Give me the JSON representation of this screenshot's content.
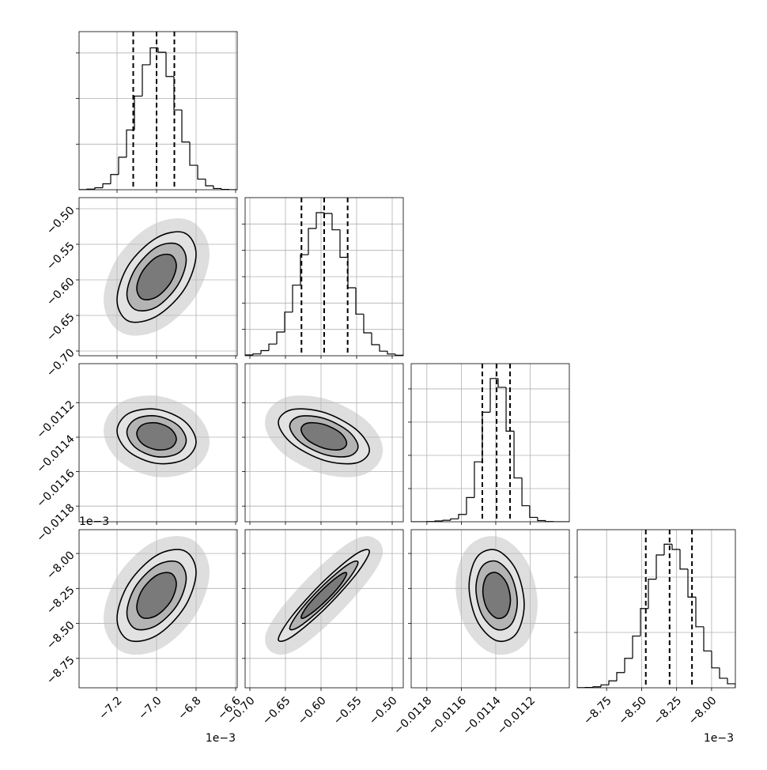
{
  "chart_data": {
    "type": "corner",
    "grid": true,
    "color": "#000000",
    "grid_color": "#b0b0b0",
    "point_color": "#bdbdbd",
    "contour_fills": [
      "#e2e2e2",
      "#b4b4b4",
      "#7a7a7a"
    ],
    "params": [
      {
        "lim": [
          -7.392,
          -6.592
        ],
        "ticks": [
          {
            "value": -7.2,
            "label": "−7.2"
          },
          {
            "value": -7.0,
            "label": "−7.0"
          },
          {
            "value": -6.8,
            "label": "−6.8"
          },
          {
            "value": -6.6,
            "label": "−6.6"
          }
        ],
        "offset_text": "1e−3",
        "bins": [
          -7.392,
          -7.352,
          -7.312,
          -7.272,
          -7.232,
          -7.192,
          -7.152,
          -7.112,
          -7.072,
          -7.032,
          -6.992,
          -6.952,
          -6.912,
          -6.872,
          -6.832,
          -6.792,
          -6.752,
          -6.712,
          -6.672,
          -6.632,
          -6.592
        ],
        "counts": [
          1,
          4,
          13,
          39,
          100,
          214,
          393,
          616,
          822,
          933,
          904,
          745,
          525,
          314,
          161,
          70,
          26,
          8,
          2,
          0
        ],
        "count_lim": [
          0,
          1040
        ],
        "count_ticks": [
          300,
          600,
          900
        ],
        "quantiles": [
          -7.118,
          -7.0,
          -6.91
        ]
      },
      {
        "lim": [
          -0.70667,
          -0.48444
        ],
        "ticks": [
          {
            "value": -0.7,
            "label": "−0.70"
          },
          {
            "value": -0.65,
            "label": "−0.65"
          },
          {
            "value": -0.6,
            "label": "−0.60"
          },
          {
            "value": -0.55,
            "label": "−0.55"
          },
          {
            "value": -0.5,
            "label": "−0.50"
          }
        ],
        "bins": [
          -0.70667,
          -0.69556,
          -0.68444,
          -0.67333,
          -0.66222,
          -0.65111,
          -0.64,
          -0.62889,
          -0.61778,
          -0.60667,
          -0.59556,
          -0.58444,
          -0.57333,
          -0.56222,
          -0.55111,
          -0.54,
          -0.52889,
          -0.51778,
          -0.50667,
          -0.49556,
          -0.48444
        ],
        "counts": [
          6,
          14,
          39,
          89,
          180,
          331,
          536,
          767,
          966,
          1086,
          1080,
          956,
          747,
          516,
          316,
          174,
          84,
          35,
          13,
          4
        ],
        "count_lim": [
          0,
          1200
        ],
        "count_ticks": [
          200,
          400,
          600,
          800,
          1000
        ],
        "quantiles": [
          -0.6275,
          -0.5956,
          -0.5626
        ]
      },
      {
        "lim": [
          -0.011891,
          -0.010973
        ],
        "ticks": [
          {
            "value": -0.0118,
            "label": "−0.0118"
          },
          {
            "value": -0.0116,
            "label": "−0.0116"
          },
          {
            "value": -0.0114,
            "label": "−0.0114"
          },
          {
            "value": -0.0112,
            "label": "−0.0112"
          }
        ],
        "bins": [
          -0.011891,
          -0.011845,
          -0.011799,
          -0.011753,
          -0.011707,
          -0.011662,
          -0.011616,
          -0.01157,
          -0.011524,
          -0.011478,
          -0.011432,
          -0.011386,
          -0.01134,
          -0.011294,
          -0.011248,
          -0.011203,
          -0.011157,
          -0.011111,
          -0.011065,
          -0.011019,
          -0.010973
        ],
        "counts": [
          0,
          0,
          2,
          6,
          11,
          22,
          55,
          182,
          451,
          825,
          1078,
          1012,
          682,
          330,
          121,
          33,
          9,
          2,
          0,
          0
        ],
        "count_lim": [
          0,
          1190
        ],
        "count_ticks": [
          250,
          500,
          750,
          1000
        ],
        "quantiles": [
          -0.011478,
          -0.011395,
          -0.011317
        ]
      },
      {
        "lim": [
          -8.96,
          -7.83
        ],
        "ticks": [
          {
            "value": -8.75,
            "label": "−8.75"
          },
          {
            "value": -8.5,
            "label": "−8.50"
          },
          {
            "value": -8.25,
            "label": "−8.25"
          },
          {
            "value": -8.0,
            "label": "−8.00"
          }
        ],
        "offset_text": "1e−3",
        "bins": [
          -8.96,
          -8.9035,
          -8.847,
          -8.7905,
          -8.734,
          -8.6775,
          -8.621,
          -8.5645,
          -8.508,
          -8.4515,
          -8.395,
          -8.3385,
          -8.282,
          -8.2255,
          -8.169,
          -8.1125,
          -8.056,
          -7.9995,
          -7.943,
          -7.8865,
          -7.83
        ],
        "counts": [
          1,
          2,
          7,
          21,
          50,
          110,
          213,
          374,
          573,
          785,
          960,
          1038,
          1000,
          858,
          656,
          441,
          266,
          144,
          69,
          29
        ],
        "count_lim": [
          0,
          1143
        ],
        "count_ticks": [
          400,
          800
        ],
        "quantiles": [
          -8.47,
          -8.3,
          -8.14
        ]
      }
    ],
    "panels": [
      [
        {
          "contours": [
            {
              "x": [
                -6.8,
                -6.859,
                -7.0,
                -7.141,
                -7.2,
                -7.141,
                -7.0,
                -6.859
              ],
              "y": [
                -0.564,
                -0.534,
                -0.541,
                -0.579,
                -0.628,
                -0.658,
                -0.651,
                -0.613
              ]
            },
            {
              "x": [
                -6.85,
                -6.894,
                -7.0,
                -7.106,
                -7.15,
                -7.106,
                -7.0,
                -6.894
              ],
              "y": [
                -0.572,
                -0.55,
                -0.554,
                -0.584,
                -0.62,
                -0.642,
                -0.638,
                -0.608
              ]
            },
            {
              "x": [
                -6.9,
                -6.929,
                -7.0,
                -7.071,
                -7.1,
                -7.071,
                -7.0,
                -6.929
              ],
              "y": [
                -0.58,
                -0.565,
                -0.568,
                -0.588,
                -0.612,
                -0.627,
                -0.624,
                -0.604
              ]
            }
          ]
        }
      ],
      [
        {
          "contours": [
            {
              "x": [
                -6.8,
                -6.859,
                -7.0,
                -7.141,
                -7.2,
                -7.141,
                -7.0,
                -6.859
              ],
              "y": [
                -0.011427,
                -0.011307,
                -0.011238,
                -0.011262,
                -0.011363,
                -0.011483,
                -0.011552,
                -0.011528
              ]
            },
            {
              "x": [
                -6.85,
                -6.894,
                -7.0,
                -7.106,
                -7.15,
                -7.106,
                -7.0,
                -6.894
              ],
              "y": [
                -0.011419,
                -0.011329,
                -0.011277,
                -0.011295,
                -0.011371,
                -0.011461,
                -0.011513,
                -0.011495
              ]
            },
            {
              "x": [
                -6.9,
                -6.929,
                -7.0,
                -7.071,
                -7.1,
                -7.071,
                -7.0,
                -6.929
              ],
              "y": [
                -0.011411,
                -0.011351,
                -0.011317,
                -0.011328,
                -0.011379,
                -0.011439,
                -0.011473,
                -0.011462
              ]
            }
          ]
        },
        {
          "contours": [
            {
              "x": [
                -0.532,
                -0.551,
                -0.596,
                -0.641,
                -0.66,
                -0.641,
                -0.596,
                -0.551
              ],
              "y": [
                -0.011475,
                -0.011354,
                -0.011256,
                -0.01124,
                -0.011315,
                -0.011436,
                -0.011534,
                -0.01155
              ]
            },
            {
              "x": [
                -0.548,
                -0.562,
                -0.596,
                -0.63,
                -0.644,
                -0.63,
                -0.596,
                -0.562
              ],
              "y": [
                -0.011455,
                -0.011364,
                -0.011291,
                -0.011279,
                -0.011335,
                -0.011426,
                -0.011499,
                -0.011511
              ]
            },
            {
              "x": [
                -0.564,
                -0.573,
                -0.596,
                -0.619,
                -0.628,
                -0.619,
                -0.596,
                -0.573
              ],
              "y": [
                -0.011435,
                -0.011374,
                -0.011326,
                -0.011318,
                -0.011355,
                -0.011416,
                -0.011464,
                -0.011472
              ]
            }
          ]
        }
      ],
      [
        {
          "contours": [
            {
              "x": [
                -6.8,
                -6.859,
                -7.0,
                -7.141,
                -7.2,
                -7.141,
                -7.0,
                -6.859
              ],
              "y": [
                -8.135,
                -7.981,
                -8.014,
                -8.215,
                -8.465,
                -8.619,
                -8.586,
                -8.385
              ]
            },
            {
              "x": [
                -6.85,
                -6.894,
                -7.0,
                -7.106,
                -7.15,
                -7.106,
                -7.0,
                -6.894
              ],
              "y": [
                -8.176,
                -8.061,
                -8.086,
                -8.236,
                -8.424,
                -8.539,
                -8.514,
                -8.364
              ]
            },
            {
              "x": [
                -6.9,
                -6.929,
                -7.0,
                -7.071,
                -7.1,
                -7.071,
                -7.0,
                -6.929
              ],
              "y": [
                -8.218,
                -8.141,
                -8.157,
                -8.257,
                -8.383,
                -8.459,
                -8.443,
                -8.343
              ]
            }
          ]
        },
        {
          "contours": [
            {
              "x": [
                -0.532,
                -0.551,
                -0.596,
                -0.641,
                -0.66,
                -0.641,
                -0.596,
                -0.551
              ],
              "y": [
                -7.986,
                -8.005,
                -8.197,
                -8.449,
                -8.614,
                -8.595,
                -8.403,
                -8.151
              ]
            },
            {
              "x": [
                -0.548,
                -0.562,
                -0.596,
                -0.63,
                -0.644,
                -0.63,
                -0.596,
                -0.562
              ],
              "y": [
                -8.065,
                -8.079,
                -8.223,
                -8.412,
                -8.535,
                -8.521,
                -8.377,
                -8.188
              ]
            },
            {
              "x": [
                -0.564,
                -0.573,
                -0.596,
                -0.619,
                -0.628,
                -0.619,
                -0.596,
                -0.573
              ],
              "y": [
                -8.143,
                -8.153,
                -8.249,
                -8.374,
                -8.457,
                -8.447,
                -8.352,
                -8.226
              ]
            }
          ]
        },
        {
          "contours": [
            {
              "x": [
                -0.011235,
                -0.011282,
                -0.011395,
                -0.011508,
                -0.011555,
                -0.011508,
                -0.011395,
                -0.011282
              ],
              "y": [
                -8.366,
                -8.118,
                -7.977,
                -8.025,
                -8.234,
                -8.482,
                -8.623,
                -8.575
              ]
            },
            {
              "x": [
                -0.011275,
                -0.01131,
                -0.011395,
                -0.01148,
                -0.011515,
                -0.01148,
                -0.011395,
                -0.01131
              ],
              "y": [
                -8.35,
                -8.163,
                -8.057,
                -8.094,
                -8.251,
                -8.437,
                -8.543,
                -8.506
              ]
            },
            {
              "x": [
                -0.011315,
                -0.011338,
                -0.011395,
                -0.011452,
                -0.011475,
                -0.011452,
                -0.011395,
                -0.011338
              ],
              "y": [
                -8.333,
                -8.209,
                -8.138,
                -8.162,
                -8.267,
                -8.391,
                -8.462,
                -8.438
              ]
            }
          ]
        }
      ]
    ]
  }
}
